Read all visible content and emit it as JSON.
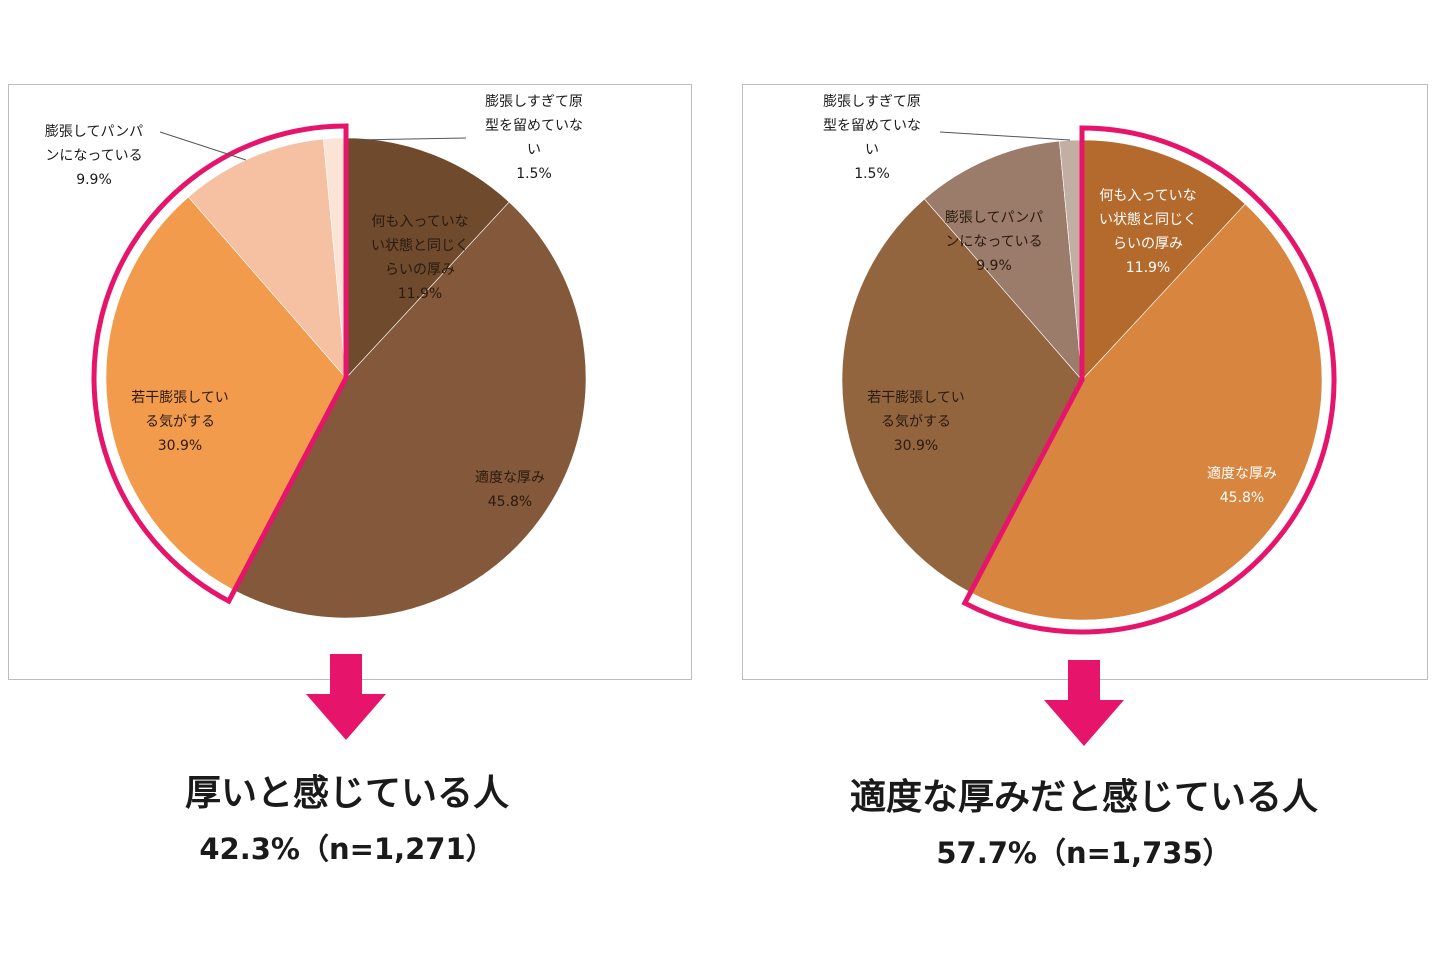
{
  "accent_color": "#e6156b",
  "chart_data": [
    {
      "type": "pie",
      "slices": [
        {
          "label": "何も入っていない状態と同じくらいの厚み",
          "label_lines": [
            "何も入っていな",
            "い状態と同じく",
            "らいの厚み"
          ],
          "value": 11.9,
          "value_text": "11.9%",
          "color": "#6f4a2c"
        },
        {
          "label": "適度な厚み",
          "label_lines": [
            "適度な厚み"
          ],
          "value": 45.8,
          "value_text": "45.8%",
          "color": "#84583a"
        },
        {
          "label": "若干膨張している気がする",
          "label_lines": [
            "若干膨張してい",
            "る気がする"
          ],
          "value": 30.9,
          "value_text": "30.9%",
          "color": "#f39b4c"
        },
        {
          "label": "膨張してパンパンになっている",
          "label_lines": [
            "膨張してパンパ",
            "ンになっている"
          ],
          "value": 9.9,
          "value_text": "9.9%",
          "color": "#f6c0a2"
        },
        {
          "label": "膨張しすぎて原型を留めていない",
          "label_lines": [
            "膨張しすぎて原",
            "型を留めていな",
            "い"
          ],
          "value": 1.5,
          "value_text": "1.5%",
          "color": "#fbe3d6"
        }
      ],
      "highlighted": [
        "若干膨張している気がする",
        "膨張してパンパンになっている",
        "膨張しすぎて原型を留めていない"
      ]
    },
    {
      "type": "pie",
      "slices": [
        {
          "label": "何も入っていない状態と同じくらいの厚み",
          "label_lines": [
            "何も入っていな",
            "い状態と同じく",
            "らいの厚み"
          ],
          "value": 11.9,
          "value_text": "11.9%",
          "color": "#b56a2d"
        },
        {
          "label": "適度な厚み",
          "label_lines": [
            "適度な厚み"
          ],
          "value": 45.8,
          "value_text": "45.8%",
          "color": "#d8853f"
        },
        {
          "label": "若干膨張している気がする",
          "label_lines": [
            "若干膨張してい",
            "る気がする"
          ],
          "value": 30.9,
          "value_text": "30.9%",
          "color": "#93653f"
        },
        {
          "label": "膨張してパンパンになっている",
          "label_lines": [
            "膨張してパンパ",
            "ンになっている"
          ],
          "value": 9.9,
          "value_text": "9.9%",
          "color": "#9b7b6a"
        },
        {
          "label": "膨張しすぎて原型を留めていない",
          "label_lines": [
            "膨張しすぎて原",
            "型を留めていな",
            "い"
          ],
          "value": 1.5,
          "value_text": "1.5%",
          "color": "#c3aea3"
        }
      ],
      "highlighted": [
        "何も入っていない状態と同じくらいの厚み",
        "適度な厚み"
      ]
    }
  ],
  "captions": {
    "left": {
      "title": "厚いと感じている人",
      "subtitle": "42.3%（n=1,271）"
    },
    "right": {
      "title": "適度な厚みだと感じている人",
      "subtitle": "57.7%（n=1,735）"
    }
  }
}
